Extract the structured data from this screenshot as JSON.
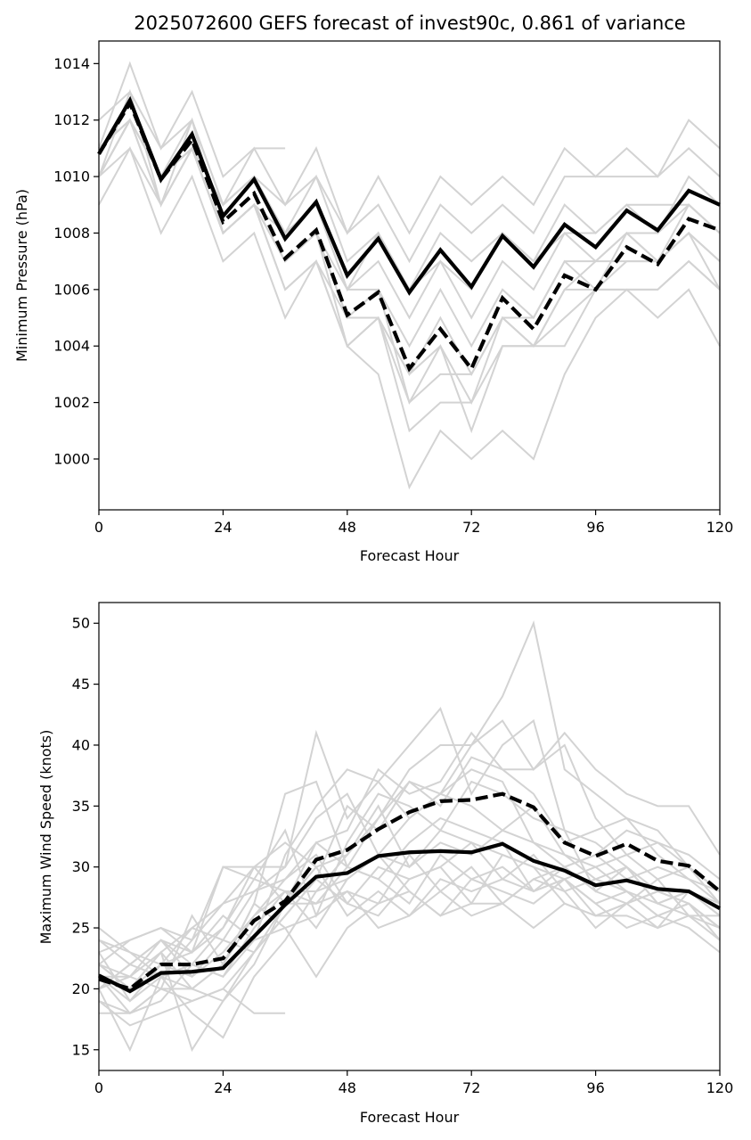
{
  "chart_data": [
    {
      "type": "line",
      "title": "2025072600 GEFS forecast of invest90c, 0.861 of variance",
      "xlabel": "Forecast Hour",
      "ylabel": "Minimum Pressure (hPa)",
      "xlim": [
        0,
        120
      ],
      "ylim": [
        998.2,
        1014.8
      ],
      "xticks": [
        0,
        24,
        48,
        72,
        96,
        120
      ],
      "yticks": [
        1000,
        1002,
        1004,
        1006,
        1008,
        1010,
        1012,
        1014
      ],
      "x": [
        0,
        6,
        12,
        18,
        24,
        30,
        36,
        42,
        48,
        54,
        60,
        66,
        72,
        78,
        84,
        90,
        96,
        102,
        108,
        114,
        120
      ],
      "ensemble_color": "#d3d3d3",
      "highlight_color": "#000000",
      "ensemble_members": [
        [
          1011,
          1014,
          1011,
          1013,
          1010,
          1011,
          1011
        ],
        [
          1012,
          1013,
          1011,
          1012,
          1009,
          1011,
          1009,
          1011,
          1008,
          1010,
          1008,
          1010,
          1009,
          1010,
          1009,
          1011,
          1010,
          1011,
          1010,
          1012,
          1011
        ],
        [
          1010,
          1012,
          1010,
          1012,
          1009,
          1010,
          1009,
          1010,
          1008,
          1009,
          1007,
          1009,
          1008,
          1009,
          1008,
          1010,
          1010,
          1010,
          1010,
          1011,
          1010
        ],
        [
          1010,
          1012,
          1010,
          1011,
          1009,
          1010,
          1008,
          1010,
          1007,
          1008,
          1006,
          1008,
          1007,
          1008,
          1007,
          1009,
          1008,
          1009,
          1008,
          1010,
          1009
        ],
        [
          1011,
          1012,
          1010,
          1011,
          1008,
          1009,
          1008,
          1009,
          1006,
          1008,
          1006,
          1007,
          1006,
          1008,
          1007,
          1008,
          1007,
          1008,
          1008,
          1009,
          1008
        ],
        [
          1010,
          1013,
          1009,
          1012,
          1008,
          1009,
          1007,
          1008,
          1006,
          1007,
          1005,
          1007,
          1005,
          1007,
          1006,
          1008,
          1008,
          1009,
          1009,
          1009,
          1008
        ],
        [
          1011,
          1012,
          1010,
          1011,
          1008,
          1009,
          1007,
          1008,
          1005,
          1006,
          1004,
          1006,
          1004,
          1006,
          1005,
          1007,
          1006,
          1008,
          1007,
          1009,
          1008
        ],
        [
          1010,
          1011,
          1009,
          1011,
          1008,
          1009,
          1006,
          1007,
          1004,
          1005,
          1003,
          1005,
          1003,
          1005,
          1004,
          1006,
          1006,
          1007,
          1007,
          1008,
          1007
        ],
        [
          1009,
          1011,
          1008,
          1010,
          1007,
          1008,
          1005,
          1007,
          1004,
          1005,
          1002,
          1004,
          1002,
          1005,
          1004,
          1006,
          1007,
          1007,
          1007,
          1008,
          1006
        ],
        [
          1010,
          1012,
          1009,
          1011,
          1008,
          1009,
          1006,
          1007,
          1005,
          1005,
          1001,
          1002,
          1002,
          1004,
          1004,
          1005,
          1006,
          1006,
          1006,
          1007,
          1006
        ],
        [
          1011,
          1012,
          1010,
          1011,
          1008,
          1009,
          1007,
          1008,
          1005,
          1005,
          1003,
          1004,
          1001,
          1004,
          1004,
          1004,
          1006,
          1006,
          1005,
          1006,
          1004
        ],
        [
          1010,
          1012,
          1009,
          1011,
          1008,
          1009,
          1007,
          1008,
          1004,
          1003,
          999,
          1001,
          1000,
          1001,
          1000,
          1003,
          1005,
          1006,
          1006,
          1007,
          1006
        ],
        [
          1010,
          1012,
          1010,
          1011,
          1009,
          1010,
          1008,
          1009,
          1006,
          1006,
          1002,
          1003,
          1003,
          1005,
          1005,
          1007,
          1007,
          1008,
          1007,
          1008,
          1007
        ]
      ],
      "series": [
        {
          "style": "solid",
          "values": [
            1010.8,
            1012.7,
            1009.9,
            1011.5,
            1008.6,
            1009.9,
            1007.8,
            1009.1,
            1006.5,
            1007.8,
            1005.9,
            1007.4,
            1006.1,
            1007.9,
            1006.8,
            1008.3,
            1007.5,
            1008.8,
            1008.1,
            1009.5,
            1009.0
          ]
        },
        {
          "style": "dashed",
          "values": [
            1010.8,
            1012.6,
            1009.9,
            1011.3,
            1008.4,
            1009.4,
            1007.1,
            1008.1,
            1005.1,
            1005.9,
            1003.2,
            1004.6,
            1003.2,
            1005.7,
            1004.6,
            1006.5,
            1006.0,
            1007.5,
            1006.9,
            1008.5,
            1008.1
          ]
        }
      ]
    },
    {
      "type": "line",
      "xlabel": "Forecast Hour",
      "ylabel": "Maximum Wind Speed (knots)",
      "xlim": [
        0,
        120
      ],
      "ylim": [
        13.3,
        51.7
      ],
      "xticks": [
        0,
        24,
        48,
        72,
        96,
        120
      ],
      "yticks": [
        15,
        20,
        25,
        30,
        35,
        40,
        45,
        50
      ],
      "x": [
        0,
        6,
        12,
        18,
        24,
        30,
        36,
        42,
        48,
        54,
        60,
        66,
        72,
        78,
        84,
        90,
        96,
        102,
        108,
        114,
        120
      ],
      "ensemble_color": "#d3d3d3",
      "highlight_color": "#000000",
      "ensemble_members": [
        [
          19,
          17,
          18,
          19,
          20,
          18,
          18
        ],
        [
          25,
          23,
          21,
          22,
          21,
          24,
          31,
          35,
          38,
          37,
          34,
          36,
          40,
          44,
          50,
          38,
          36,
          34,
          33,
          30,
          28
        ],
        [
          24,
          22,
          24,
          23,
          25,
          30,
          30,
          41,
          34,
          37,
          40,
          43,
          36,
          40,
          42,
          33,
          32,
          30,
          28,
          27,
          25
        ],
        [
          23,
          19,
          21,
          20,
          22,
          27,
          36,
          37,
          30,
          34,
          38,
          40,
          40,
          42,
          38,
          41,
          38,
          36,
          35,
          35,
          31
        ],
        [
          22,
          21,
          23,
          25,
          24,
          28,
          29,
          32,
          33,
          38,
          36,
          37,
          41,
          38,
          38,
          40,
          34,
          31,
          32,
          30,
          28
        ],
        [
          21,
          18,
          20,
          19,
          20,
          23,
          26,
          29,
          35,
          33,
          37,
          35,
          39,
          38,
          36,
          32,
          33,
          34,
          31,
          29,
          27
        ],
        [
          20,
          15,
          21,
          18,
          16,
          21,
          24,
          28,
          31,
          35,
          30,
          32,
          31,
          33,
          32,
          31,
          29,
          28,
          27,
          28,
          26
        ],
        [
          22,
          20,
          23,
          15,
          19,
          22,
          27,
          27,
          30,
          29,
          27,
          31,
          29,
          28,
          27,
          29,
          27,
          28,
          26,
          27,
          25
        ],
        [
          21,
          19,
          22,
          23,
          26,
          24,
          25,
          26,
          28,
          27,
          31,
          28,
          30,
          27,
          29,
          30,
          28,
          27,
          29,
          26,
          24
        ],
        [
          20,
          22,
          24,
          21,
          23,
          26,
          29,
          31,
          27,
          30,
          29,
          30,
          27,
          31,
          30,
          27,
          26,
          26,
          25,
          26,
          26
        ],
        [
          19,
          18,
          19,
          22,
          21,
          25,
          28,
          25,
          29,
          31,
          28,
          26,
          29,
          30,
          28,
          29,
          27,
          25,
          26,
          25,
          23
        ],
        [
          23,
          24,
          25,
          24,
          27,
          30,
          32,
          30,
          26,
          28,
          26,
          29,
          28,
          29,
          31,
          28,
          29,
          30,
          27,
          28,
          27
        ],
        [
          21,
          21,
          20,
          26,
          22,
          27,
          25,
          21,
          25,
          27,
          28,
          26,
          27,
          27,
          25,
          27,
          26,
          27,
          28,
          27,
          25
        ],
        [
          18,
          18,
          20,
          20,
          19,
          23,
          26,
          29,
          27,
          26,
          29,
          30,
          32,
          29,
          28,
          30,
          31,
          29,
          30,
          29,
          28
        ],
        [
          20,
          22,
          21,
          24,
          30,
          29,
          28,
          27,
          28,
          25,
          26,
          28,
          26,
          27,
          29,
          28,
          25,
          27,
          25,
          28,
          26
        ],
        [
          22,
          24,
          25,
          23,
          30,
          30,
          27,
          32,
          30,
          29,
          32,
          34,
          33,
          32,
          28,
          29,
          30,
          28,
          26,
          27,
          24
        ],
        [
          24,
          23,
          22,
          25,
          27,
          28,
          30,
          34,
          36,
          31,
          34,
          36,
          35,
          33,
          35,
          31,
          30,
          31,
          29,
          30,
          27
        ],
        [
          20,
          21,
          24,
          22,
          25,
          29,
          33,
          26,
          32,
          36,
          35,
          33,
          37,
          36,
          34,
          33,
          28,
          30,
          27,
          26,
          25
        ],
        [
          22,
          20,
          22,
          21,
          24,
          23,
          27,
          30,
          31,
          34,
          37,
          36,
          38,
          37,
          32,
          30,
          31,
          33,
          32,
          31,
          29
        ],
        [
          21,
          20,
          23,
          20,
          22,
          26,
          28,
          28,
          29,
          31,
          30,
          33,
          32,
          31,
          30,
          29,
          26,
          27,
          28,
          28,
          26
        ]
      ],
      "series": [
        {
          "style": "solid",
          "values": [
            21.1,
            19.8,
            21.3,
            21.4,
            21.7,
            24.3,
            26.9,
            29.2,
            29.5,
            30.9,
            31.2,
            31.3,
            31.2,
            31.9,
            30.5,
            29.7,
            28.5,
            28.9,
            28.2,
            28.0,
            26.6
          ]
        },
        {
          "style": "dashed",
          "values": [
            20.8,
            20.0,
            22.0,
            22.0,
            22.5,
            25.6,
            27.2,
            30.6,
            31.4,
            33.1,
            34.5,
            35.4,
            35.5,
            36.0,
            34.9,
            32.0,
            30.9,
            31.9,
            30.5,
            30.1,
            28.0
          ]
        }
      ]
    }
  ]
}
